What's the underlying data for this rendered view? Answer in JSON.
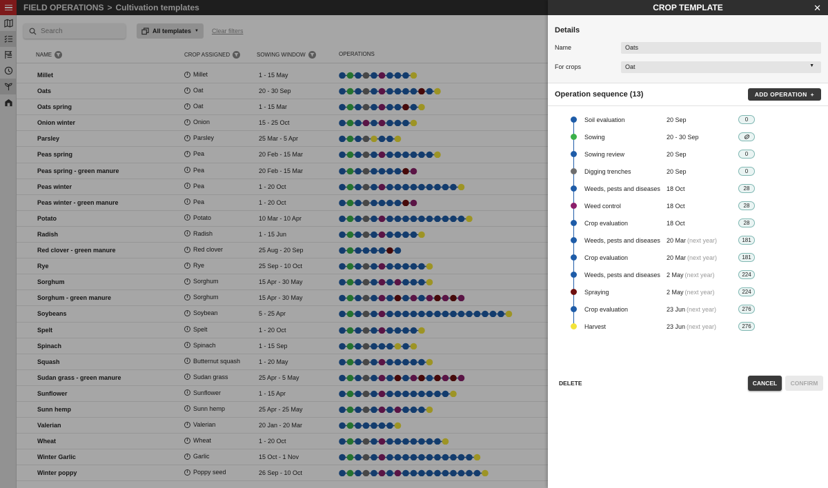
{
  "colors": {
    "blue": "#1e5ca8",
    "green": "#3ab04a",
    "gray": "#6e6e6e",
    "purple": "#8b1f6b",
    "maroon": "#6e1010",
    "yellow": "#f2e33a",
    "accent_red": "#c0282a"
  },
  "header": {
    "section": "FIELD OPERATIONS",
    "separator": ">",
    "title": "Cultivation templates"
  },
  "rail": {
    "items": [
      {
        "icon": "map-icon"
      },
      {
        "icon": "checklist-icon"
      },
      {
        "icon": "flags-icon"
      },
      {
        "icon": "clock-icon"
      },
      {
        "icon": "sprout-icon"
      },
      {
        "icon": "barn-icon"
      }
    ]
  },
  "toolbar": {
    "search_placeholder": "Search",
    "templates_label": "All templates",
    "clear_filters": "Clear filters"
  },
  "table": {
    "columns": {
      "name": "NAME",
      "crop": "CROP ASSIGNED",
      "window": "SOWING WINDOW",
      "ops": "OPERATIONS"
    },
    "rows": [
      {
        "name": "Millet",
        "crop": "Millet",
        "window": "1 - 15 May",
        "ops": "bgbgbpbbby"
      },
      {
        "name": "Oats",
        "crop": "Oat",
        "window": "20 - 30 Sep",
        "ops": "bgbgbpbbbbmby"
      },
      {
        "name": "Oats spring",
        "crop": "Oat",
        "window": "1 - 15 Mar",
        "ops": "bgbgbpbbmby"
      },
      {
        "name": "Onion winter",
        "crop": "Onion",
        "window": "15 - 25 Oct",
        "ops": "bgbpbpbbby"
      },
      {
        "name": "Parsley",
        "crop": "Parsley",
        "window": "25 Mar - 5 Apr",
        "ops": "bgbgybby"
      },
      {
        "name": "Peas spring",
        "crop": "Pea",
        "window": "20 Feb - 15 Mar",
        "ops": "bgbgbpbbbbbby"
      },
      {
        "name": "Peas spring - green manure",
        "crop": "Pea",
        "window": "20 Feb - 15 Mar",
        "ops": "bgbgbbbbmp"
      },
      {
        "name": "Peas winter",
        "crop": "Pea",
        "window": "1 - 20 Oct",
        "ops": "bgbgbpbbbbbbbbby"
      },
      {
        "name": "Peas winter - green manure",
        "crop": "Pea",
        "window": "1 - 20 Oct",
        "ops": "bgbgbbbbmp"
      },
      {
        "name": "Potato",
        "crop": "Potato",
        "window": "10 Mar - 10 Apr",
        "ops": "bgbgbpbbbbbbbbbby"
      },
      {
        "name": "Radish",
        "crop": "Radish",
        "window": "1 - 15 Jun",
        "ops": "bgbgbpbbbby"
      },
      {
        "name": "Red clover - green manure",
        "crop": "Red clover",
        "window": "25 Aug - 20 Sep",
        "ops": "bgbbbbmb"
      },
      {
        "name": "Rye",
        "crop": "Rye",
        "window": "25 Sep - 10 Oct",
        "ops": "bgbgbpbbbbby"
      },
      {
        "name": "Sorghum",
        "crop": "Sorghum",
        "window": "15 Apr - 30 May",
        "ops": "bgbgbpbpbbby"
      },
      {
        "name": "Sorghum - green manure",
        "crop": "Sorghum",
        "window": "15 Apr - 30 May",
        "ops": "bgbgbpbmbpbpmpmp"
      },
      {
        "name": "Soybeans",
        "crop": "Soybean",
        "window": "5 - 25 Apr",
        "ops": "bgbgbpbbbbbbbbbbbbbbby"
      },
      {
        "name": "Spelt",
        "crop": "Spelt",
        "window": "1 - 20 Oct",
        "ops": "bgbgbpbbbby"
      },
      {
        "name": "Spinach",
        "crop": "Spinach",
        "window": "1 - 15 Sep",
        "ops": "bgbgbbbyby"
      },
      {
        "name": "Squash",
        "crop": "Butternut squash",
        "window": "1 - 20 May",
        "ops": "bgbgbpbbbbby"
      },
      {
        "name": "Sudan grass - green manure",
        "crop": "Sudan grass",
        "window": "25 Apr - 5 May",
        "ops": "bgbgbpbmbpmbmpmp"
      },
      {
        "name": "Sunflower",
        "crop": "Sunflower",
        "window": "1 - 15 Apr",
        "ops": "bgbgbpbbbbbbbby"
      },
      {
        "name": "Sunn hemp",
        "crop": "Sunn hemp",
        "window": "25 Apr - 25 May",
        "ops": "bgbgbpbpbbby"
      },
      {
        "name": "Valerian",
        "crop": "Valerian",
        "window": "20 Jan - 20 Mar",
        "ops": "bgbbbbby"
      },
      {
        "name": "Wheat",
        "crop": "Wheat",
        "window": "1 - 20 Oct",
        "ops": "bgbgbpbbbbbbby"
      },
      {
        "name": "Winter Garlic",
        "crop": "Garlic",
        "window": "15 Oct - 1 Nov",
        "ops": "bgbgbpbbbbbbbbbbby"
      },
      {
        "name": "Winter poppy",
        "crop": "Poppy seed",
        "window": "26 Sep - 10 Oct",
        "ops": "bgbgbpbpbbbbbbbbbby"
      }
    ]
  },
  "panel": {
    "title": "CROP TEMPLATE",
    "close_label": "✕",
    "details_title": "Details",
    "name_label": "Name",
    "name_value": "Oats",
    "crops_label": "For crops",
    "crops_value": "Oat",
    "sequence_title": "Operation sequence (13)",
    "add_operation": "ADD OPERATION",
    "add_plus": "+",
    "operations": [
      {
        "name": "Soil evaluation",
        "date": "20 Sep",
        "next_year": "",
        "badge": "0",
        "color": "blue"
      },
      {
        "name": "Sowing",
        "date": "20 - 30 Sep",
        "next_year": "",
        "badge": "",
        "badge_icon": "seed-icon",
        "color": "green"
      },
      {
        "name": "Sowing review",
        "date": "20 Sep",
        "next_year": "",
        "badge": "0",
        "color": "blue"
      },
      {
        "name": "Digging trenches",
        "date": "20 Sep",
        "next_year": "",
        "badge": "0",
        "color": "gray"
      },
      {
        "name": "Weeds, pests and diseases",
        "date": "18 Oct",
        "next_year": "",
        "badge": "28",
        "color": "blue"
      },
      {
        "name": "Weed control",
        "date": "18 Oct",
        "next_year": "",
        "badge": "28",
        "color": "purple"
      },
      {
        "name": "Crop evaluation",
        "date": "18 Oct",
        "next_year": "",
        "badge": "28",
        "color": "blue"
      },
      {
        "name": "Weeds, pests and diseases",
        "date": "20 Mar",
        "next_year": "(next year)",
        "badge": "181",
        "color": "blue"
      },
      {
        "name": "Crop evaluation",
        "date": "20 Mar",
        "next_year": "(next year)",
        "badge": "181",
        "color": "blue"
      },
      {
        "name": "Weeds, pests and diseases",
        "date": "2 May",
        "next_year": "(next year)",
        "badge": "224",
        "color": "blue"
      },
      {
        "name": "Spraying",
        "date": "2 May",
        "next_year": "(next year)",
        "badge": "224",
        "color": "maroon"
      },
      {
        "name": "Crop evaluation",
        "date": "23 Jun",
        "next_year": "(next year)",
        "badge": "276",
        "color": "blue"
      },
      {
        "name": "Harvest",
        "date": "23 Jun",
        "next_year": "(next year)",
        "badge": "276",
        "color": "yellow"
      }
    ],
    "delete_label": "DELETE",
    "cancel_label": "CANCEL",
    "confirm_label": "CONFIRM"
  }
}
